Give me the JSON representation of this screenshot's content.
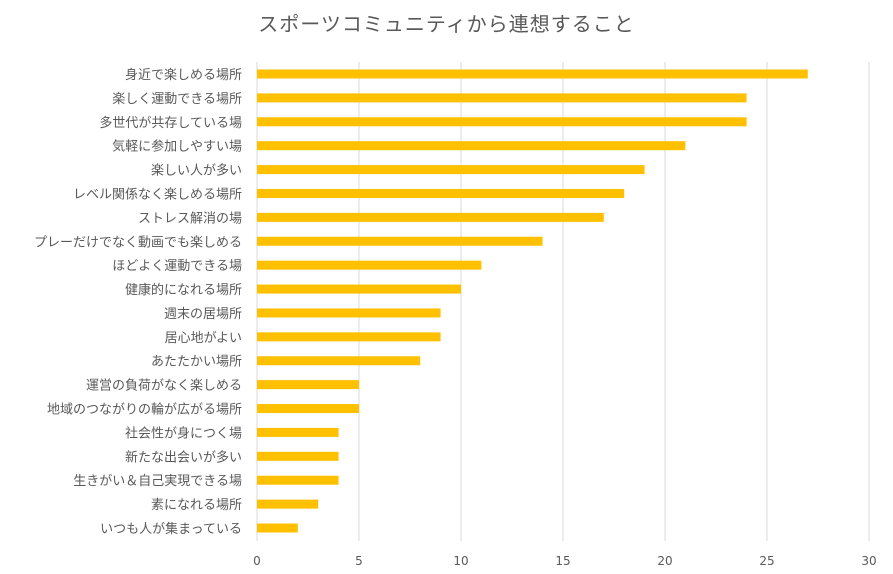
{
  "chart_data": {
    "type": "bar",
    "orientation": "horizontal",
    "title": "スポーツコミュニティから連想すること",
    "categories": [
      "身近で楽しめる場所",
      "楽しく運動できる場所",
      "多世代が共存している場",
      "気軽に参加しやすい場",
      "楽しい人が多い",
      "レベル関係なく楽しめる場所",
      "ストレス解消の場",
      "プレーだけでなく動画でも楽しめる",
      "ほどよく運動できる場",
      "健康的になれる場所",
      "週末の居場所",
      "居心地がよい",
      "あたたかい場所",
      "運営の負荷がなく楽しめる",
      "地域のつながりの輪が広がる場所",
      "社会性が身につく場",
      "新たな出会いが多い",
      "生きがい＆自己実現できる場",
      "素になれる場所",
      "いつも人が集まっている"
    ],
    "values": [
      27,
      24,
      24,
      21,
      19,
      18,
      17,
      14,
      11,
      10,
      9,
      9,
      8,
      5,
      5,
      4,
      4,
      4,
      3,
      2
    ],
    "xlim": [
      0,
      30
    ],
    "xticks": [
      0,
      5,
      10,
      15,
      20,
      25,
      30
    ],
    "grid": true,
    "bar_color": "#FFC000",
    "text_color": "#595959",
    "grid_color": "#D9D9D9"
  }
}
